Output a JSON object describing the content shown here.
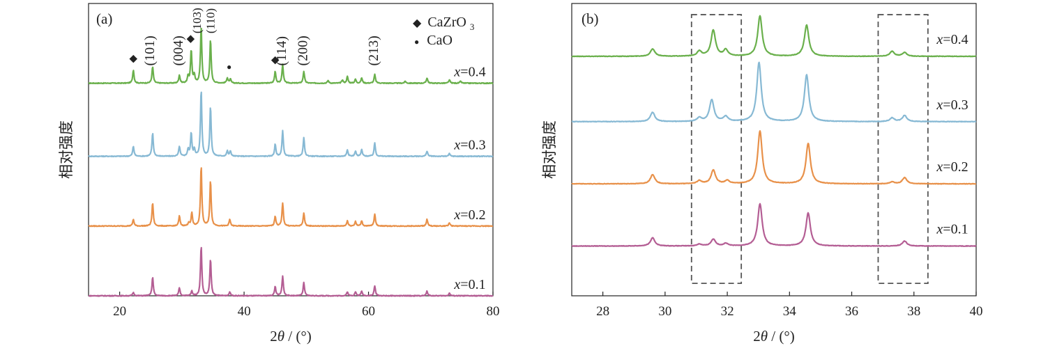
{
  "chart_data": [
    {
      "id": "a",
      "type": "line",
      "panel_label": "(a)",
      "xlabel_pre": "2",
      "xlabel_var": "θ",
      "xlabel_post": " / (°)",
      "ylabel": "相对强度",
      "xlim": [
        15,
        80
      ],
      "xticks": [
        20,
        40,
        60,
        80
      ],
      "x_ticklabels": [
        "20",
        "40",
        "60",
        "80"
      ],
      "ylim": [
        0,
        4.4
      ],
      "series": [
        {
          "name": "x=0.4",
          "var": "x",
          "value_text": "=0.4",
          "color": "#6ab04c",
          "baseline": 3.2,
          "peaks": [
            [
              22.2,
              0.2
            ],
            [
              25.3,
              0.25
            ],
            [
              29.6,
              0.12
            ],
            [
              31.0,
              0.1
            ],
            [
              31.5,
              0.5
            ],
            [
              32.0,
              0.12
            ],
            [
              33.1,
              0.85
            ],
            [
              34.6,
              0.65
            ],
            [
              37.3,
              0.08
            ],
            [
              37.8,
              0.06
            ],
            [
              45.0,
              0.18
            ],
            [
              46.2,
              0.28
            ],
            [
              49.6,
              0.18
            ],
            [
              53.5,
              0.04
            ],
            [
              55.8,
              0.05
            ],
            [
              56.6,
              0.1
            ],
            [
              57.9,
              0.06
            ],
            [
              58.9,
              0.08
            ],
            [
              61.0,
              0.13
            ],
            [
              65.9,
              0.03
            ],
            [
              69.4,
              0.08
            ],
            [
              73.0,
              0.05
            ],
            [
              74.8,
              0.03
            ]
          ]
        },
        {
          "name": "x=0.3",
          "var": "x",
          "value_text": "=0.3",
          "color": "#87b9d4",
          "baseline": 2.1,
          "peaks": [
            [
              22.2,
              0.15
            ],
            [
              25.3,
              0.35
            ],
            [
              29.6,
              0.15
            ],
            [
              31.0,
              0.1
            ],
            [
              31.5,
              0.35
            ],
            [
              32.0,
              0.1
            ],
            [
              33.1,
              1.0
            ],
            [
              34.6,
              0.75
            ],
            [
              37.3,
              0.08
            ],
            [
              37.8,
              0.08
            ],
            [
              45.0,
              0.18
            ],
            [
              46.2,
              0.38
            ],
            [
              49.6,
              0.28
            ],
            [
              56.6,
              0.1
            ],
            [
              57.9,
              0.08
            ],
            [
              58.9,
              0.1
            ],
            [
              61.0,
              0.2
            ],
            [
              69.4,
              0.08
            ],
            [
              73.0,
              0.04
            ]
          ]
        },
        {
          "name": "x=0.2",
          "var": "x",
          "value_text": "=0.2",
          "color": "#e8914a",
          "baseline": 1.05,
          "peaks": [
            [
              22.2,
              0.1
            ],
            [
              25.3,
              0.35
            ],
            [
              29.6,
              0.15
            ],
            [
              31.1,
              0.05
            ],
            [
              31.6,
              0.2
            ],
            [
              33.1,
              0.9
            ],
            [
              34.6,
              0.68
            ],
            [
              37.7,
              0.1
            ],
            [
              45.0,
              0.15
            ],
            [
              46.2,
              0.35
            ],
            [
              49.6,
              0.2
            ],
            [
              56.6,
              0.08
            ],
            [
              57.9,
              0.07
            ],
            [
              58.9,
              0.08
            ],
            [
              61.0,
              0.18
            ],
            [
              69.4,
              0.1
            ],
            [
              73.0,
              0.05
            ]
          ]
        },
        {
          "name": "x=0.1",
          "var": "x",
          "value_text": "=0.1",
          "color": "#b45e94",
          "baseline": 0.0,
          "peaks": [
            [
              22.2,
              0.05
            ],
            [
              25.3,
              0.28
            ],
            [
              29.6,
              0.12
            ],
            [
              31.6,
              0.07
            ],
            [
              33.1,
              0.75
            ],
            [
              34.6,
              0.55
            ],
            [
              37.7,
              0.06
            ],
            [
              45.0,
              0.14
            ],
            [
              46.2,
              0.3
            ],
            [
              49.6,
              0.2
            ],
            [
              56.6,
              0.06
            ],
            [
              57.9,
              0.06
            ],
            [
              58.9,
              0.07
            ],
            [
              61.0,
              0.15
            ],
            [
              69.4,
              0.07
            ],
            [
              73.0,
              0.04
            ]
          ]
        }
      ],
      "legend": [
        {
          "marker": "◆",
          "label_pre": "CaZrO",
          "label_sub": "3"
        },
        {
          "marker": "●",
          "label_pre": "CaO",
          "label_sub": ""
        }
      ],
      "annotations": [
        {
          "text": "(101)",
          "x": 25.0,
          "rotated": true
        },
        {
          "text": "(004)",
          "x": 29.6,
          "rotated": true
        },
        {
          "text": "(103)",
          "x": 32.6,
          "rotated": true
        },
        {
          "text": "(110)",
          "x": 34.8,
          "rotated": true
        },
        {
          "text": "(114)",
          "x": 46.2,
          "rotated": true
        },
        {
          "text": "(200)",
          "x": 49.6,
          "rotated": true
        },
        {
          "text": "(213)",
          "x": 61.0,
          "rotated": true
        }
      ],
      "phase_markers": [
        {
          "symbol": "◆",
          "x": 22.2
        },
        {
          "symbol": "◆",
          "x": 31.4
        },
        {
          "symbol": "◆",
          "x": 45.0
        },
        {
          "symbol": "●",
          "x": 37.6
        }
      ]
    },
    {
      "id": "b",
      "type": "line",
      "panel_label": "(b)",
      "xlabel_pre": "2",
      "xlabel_var": "θ",
      "xlabel_post": " / (°)",
      "ylabel": "相对强度",
      "xlim": [
        27,
        40
      ],
      "xticks": [
        28,
        30,
        32,
        34,
        36,
        38,
        40
      ],
      "x_ticklabels": [
        "28",
        "30",
        "32",
        "34",
        "36",
        "38",
        "40"
      ],
      "ylim": [
        -0.6,
        4.1
      ],
      "series": [
        {
          "name": "x=0.4",
          "var": "x",
          "value_text": "=0.4",
          "color": "#6ab04c",
          "baseline": 3.25,
          "peaks": [
            [
              29.6,
              0.12
            ],
            [
              31.1,
              0.08
            ],
            [
              31.55,
              0.42
            ],
            [
              31.95,
              0.1
            ],
            [
              33.05,
              0.65
            ],
            [
              34.55,
              0.5
            ],
            [
              37.3,
              0.08
            ],
            [
              37.7,
              0.06
            ]
          ]
        },
        {
          "name": "x=0.3",
          "var": "x",
          "value_text": "=0.3",
          "color": "#87b9d4",
          "baseline": 2.2,
          "peaks": [
            [
              29.6,
              0.15
            ],
            [
              31.1,
              0.06
            ],
            [
              31.5,
              0.35
            ],
            [
              31.95,
              0.08
            ],
            [
              33.02,
              0.95
            ],
            [
              34.55,
              0.75
            ],
            [
              37.3,
              0.06
            ],
            [
              37.7,
              0.1
            ]
          ]
        },
        {
          "name": "x=0.2",
          "var": "x",
          "value_text": "=0.2",
          "color": "#e8914a",
          "baseline": 1.2,
          "peaks": [
            [
              29.6,
              0.15
            ],
            [
              31.1,
              0.05
            ],
            [
              31.55,
              0.22
            ],
            [
              32.0,
              0.05
            ],
            [
              33.05,
              0.85
            ],
            [
              34.6,
              0.65
            ],
            [
              37.3,
              0.03
            ],
            [
              37.7,
              0.1
            ]
          ]
        },
        {
          "name": "x=0.1",
          "var": "x",
          "value_text": "=0.1",
          "color": "#b45e94",
          "baseline": 0.2,
          "peaks": [
            [
              29.6,
              0.13
            ],
            [
              31.1,
              0.03
            ],
            [
              31.55,
              0.11
            ],
            [
              31.95,
              0.04
            ],
            [
              33.05,
              0.68
            ],
            [
              34.6,
              0.53
            ],
            [
              37.7,
              0.08
            ]
          ]
        }
      ],
      "dashed_boxes": [
        {
          "x0": 30.85,
          "x1": 32.45,
          "y0": -0.4,
          "y1": 3.92
        },
        {
          "x0": 36.85,
          "x1": 38.45,
          "y0": -0.4,
          "y1": 3.92
        }
      ]
    }
  ]
}
